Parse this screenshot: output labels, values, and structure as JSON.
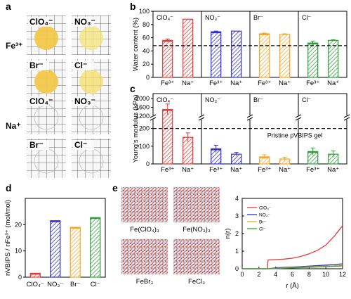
{
  "panels": {
    "a": "a",
    "b": "b",
    "c": "c",
    "d": "d",
    "e": "e"
  },
  "colors": {
    "red": "#e53935",
    "blue": "#2e2edb",
    "orange": "#f5a623",
    "green": "#2e9e3a",
    "grid": "#333333"
  },
  "panel_a": {
    "rows": [
      {
        "label": "Fe³⁺",
        "photos": [
          {
            "ion": "ClO₄⁻",
            "fill": "#f2c84b",
            "strength": "strong"
          },
          {
            "ion": "NO₃⁻",
            "fill": "#f6e37a",
            "strength": "light"
          },
          {
            "ion": "Br⁻",
            "fill": "#f2c84b",
            "strength": "strong"
          },
          {
            "ion": "Cl⁻",
            "fill": "#f5dd6a",
            "strength": "light"
          }
        ]
      },
      {
        "label": "Na⁺",
        "photos": [
          {
            "ion": "ClO₄⁻",
            "fill": "none",
            "strength": "clear"
          },
          {
            "ion": "NO₃⁻",
            "fill": "none",
            "strength": "clear"
          },
          {
            "ion": "Br⁻",
            "fill": "none",
            "strength": "clear"
          },
          {
            "ion": "Cl⁻",
            "fill": "none",
            "strength": "clear"
          }
        ]
      }
    ]
  },
  "panel_e": {
    "labels": [
      "Fe(ClO₄)₃",
      "Fe(NO₃)₃",
      "FeBr₃",
      "FeCl₃"
    ]
  },
  "chart_data": [
    {
      "panel": "b",
      "type": "bar",
      "ylabel": "Water content (%)",
      "ylim": [
        0,
        100
      ],
      "yticks": [
        0,
        20,
        40,
        60,
        80,
        100
      ],
      "reference_line": 48,
      "groups": [
        {
          "ion": "ClO₄⁻",
          "color": "#e53935",
          "categories": [
            "Fe³⁺",
            "Na⁺"
          ],
          "values": [
            56,
            88
          ],
          "errors": [
            2,
            0
          ]
        },
        {
          "ion": "NO₃⁻",
          "color": "#2e2edb",
          "categories": [
            "Fe³⁺",
            "Na⁺"
          ],
          "values": [
            69,
            70
          ],
          "errors": [
            1,
            0
          ]
        },
        {
          "ion": "Br⁻",
          "color": "#f5a623",
          "categories": [
            "Fe³⁺",
            "Na⁺"
          ],
          "values": [
            66,
            65
          ],
          "errors": [
            1,
            1
          ]
        },
        {
          "ion": "Cl⁻",
          "color": "#2e9e3a",
          "categories": [
            "Fe³⁺",
            "Na⁺"
          ],
          "values": [
            52,
            56
          ],
          "errors": [
            3,
            1
          ]
        }
      ]
    },
    {
      "panel": "c",
      "type": "bar",
      "ylabel": "Young's modulus (kPa)",
      "axis_break": {
        "lower": [
          0,
          250
        ],
        "upper": [
          1200,
          2000
        ]
      },
      "yticks_lower": [
        0,
        100,
        200
      ],
      "yticks_upper": [
        1200,
        1600,
        2000
      ],
      "reference_line": 200,
      "reference_label": "Pristine pVBIPS gel",
      "groups": [
        {
          "ion": "ClO₄⁻",
          "color": "#e53935",
          "categories": [
            "Fe³⁺",
            "Na⁺"
          ],
          "values": [
            1500,
            150
          ],
          "errors": [
            250,
            25
          ]
        },
        {
          "ion": "NO₃⁻",
          "color": "#2e2edb",
          "categories": [
            "Fe³⁺",
            "Na⁺"
          ],
          "values": [
            85,
            55
          ],
          "errors": [
            20,
            10
          ]
        },
        {
          "ion": "Br⁻",
          "color": "#f5a623",
          "categories": [
            "Fe³⁺",
            "Na⁺"
          ],
          "values": [
            40,
            28
          ],
          "errors": [
            12,
            10
          ]
        },
        {
          "ion": "Cl⁻",
          "color": "#2e9e3a",
          "categories": [
            "Fe³⁺",
            "Na⁺"
          ],
          "values": [
            70,
            55
          ],
          "errors": [
            20,
            18
          ]
        }
      ]
    },
    {
      "panel": "d",
      "type": "bar",
      "ylabel": "nVBIPS / nFe³⁺ (mol/mol)",
      "ylim": [
        0,
        30
      ],
      "yticks": [
        0,
        10,
        20
      ],
      "categories": [
        "ClO₄⁻",
        "NO₃⁻",
        "Br⁻",
        "Cl⁻"
      ],
      "values": [
        1.5,
        21.5,
        19,
        22.7
      ],
      "colors": [
        "#e53935",
        "#2e2edb",
        "#f5a623",
        "#2e9e3a"
      ]
    },
    {
      "panel": "e",
      "type": "line",
      "xlabel": "r (Å)",
      "ylabel": "n(r)",
      "xlim": [
        0,
        12
      ],
      "ylim": [
        0,
        4
      ],
      "xticks": [
        0,
        2,
        4,
        6,
        8,
        10,
        12
      ],
      "yticks": [
        0,
        1,
        2,
        3,
        4
      ],
      "series": [
        {
          "name": "ClO₄⁻",
          "color": "#e53935",
          "x": [
            0,
            3.0,
            3.1,
            4,
            5,
            6,
            7,
            8,
            9,
            10,
            11,
            12
          ],
          "y": [
            0,
            0,
            0.5,
            0.52,
            0.55,
            0.6,
            0.7,
            0.85,
            1.05,
            1.35,
            1.85,
            2.45
          ]
        },
        {
          "name": "NO₃⁻",
          "color": "#2e2edb",
          "x": [
            0,
            3,
            4,
            5,
            6,
            7,
            8,
            9,
            10,
            11,
            12
          ],
          "y": [
            0,
            0,
            0.05,
            0.08,
            0.1,
            0.12,
            0.15,
            0.18,
            0.21,
            0.24,
            0.28
          ]
        },
        {
          "name": "Br⁻",
          "color": "#f5a623",
          "x": [
            0,
            3,
            4,
            5,
            6,
            7,
            8,
            9,
            10,
            11,
            12
          ],
          "y": [
            0,
            0,
            0.02,
            0.05,
            0.07,
            0.09,
            0.11,
            0.13,
            0.15,
            0.17,
            0.2
          ]
        },
        {
          "name": "Cl⁻",
          "color": "#2e9e3a",
          "x": [
            0,
            3,
            4,
            5,
            6,
            7,
            8,
            9,
            10,
            11,
            12
          ],
          "y": [
            0,
            0,
            0.01,
            0.03,
            0.05,
            0.07,
            0.08,
            0.1,
            0.12,
            0.14,
            0.16
          ]
        }
      ]
    }
  ]
}
